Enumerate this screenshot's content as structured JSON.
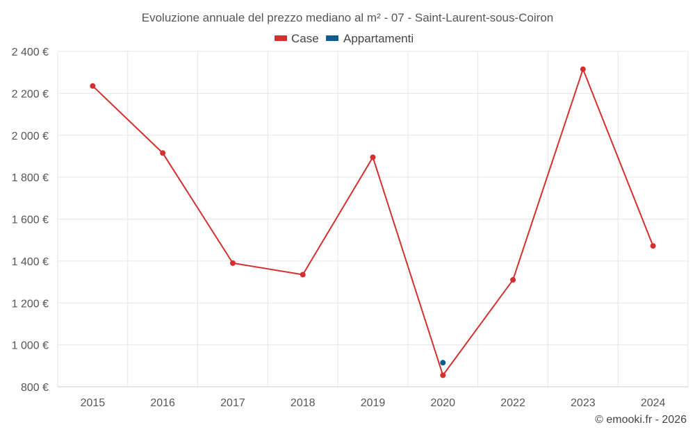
{
  "chart_data": {
    "type": "line",
    "title": "Evoluzione annuale del prezzo mediano al m² - 07 - Saint-Laurent-sous-Coiron",
    "categories": [
      "2015",
      "2016",
      "2017",
      "2018",
      "2019",
      "2020",
      "2022",
      "2023",
      "2024"
    ],
    "series": [
      {
        "name": "Case",
        "color": "#d32f2f",
        "values": [
          2235,
          1915,
          1390,
          1335,
          1895,
          855,
          1310,
          2315,
          1472
        ]
      },
      {
        "name": "Appartamenti",
        "color": "#0d5c91",
        "values": [
          null,
          null,
          null,
          null,
          null,
          915,
          null,
          null,
          null
        ]
      }
    ],
    "ylim": [
      800,
      2400
    ],
    "yticks": [
      800,
      1000,
      1200,
      1400,
      1600,
      1800,
      2000,
      2200,
      2400
    ],
    "ytick_labels": [
      "800 €",
      "1 000 €",
      "1 200 €",
      "1 400 €",
      "1 600 €",
      "1 800 €",
      "2 000 €",
      "2 200 €",
      "2 400 €"
    ],
    "xlabel": "",
    "ylabel": "",
    "grid": true,
    "legend_position": "top-center"
  },
  "credit": "© emooki.fr - 2026"
}
